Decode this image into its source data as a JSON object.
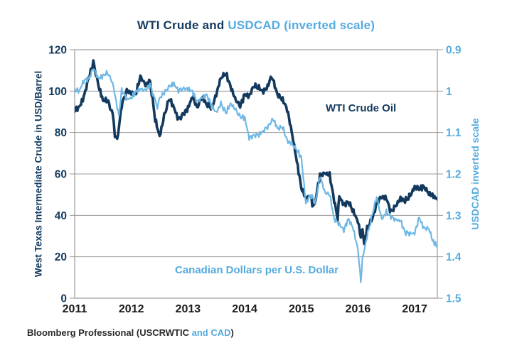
{
  "title": {
    "part1": "WTI Crude and ",
    "part2": "USDCAD (inverted scale)"
  },
  "footer": {
    "part1": "Bloomberg Professional (USCRWTIC ",
    "part2": "and CAD",
    "part3": ")"
  },
  "colors": {
    "navy": "#133a5e",
    "light_blue_text": "#54abdf",
    "light_blue_line": "#6fb8e5",
    "grid": "#999999",
    "x_tick_text": "#1b1b1b",
    "footer_text": "#2b2b2b",
    "background": "#ffffff"
  },
  "chart_data": {
    "type": "line",
    "title": "WTI Crude and USDCAD (inverted scale)",
    "grid": true,
    "x_axis": {
      "range": [
        2011.0,
        2017.4
      ],
      "tick_labels": [
        "2011",
        "2012",
        "2013",
        "2014",
        "2015",
        "2016",
        "2017"
      ],
      "tick_values": [
        2011,
        2012,
        2013,
        2014,
        2015,
        2016,
        2017
      ]
    },
    "left_axis": {
      "label": "West Texas Intermediate Crude in USD/Barrel",
      "range": [
        0,
        120
      ],
      "tick_labels": [
        "120",
        "100",
        "80",
        "60",
        "40",
        "20",
        "0"
      ],
      "tick_values": [
        120,
        100,
        80,
        60,
        40,
        20,
        0
      ]
    },
    "right_axis": {
      "label": "USDCAD inverted scale",
      "range": [
        0.9,
        1.5
      ],
      "inverted": true,
      "tick_labels": [
        "0.9",
        "1",
        "1.1",
        "1.2",
        "1.3",
        "1.4",
        "1.5"
      ],
      "tick_values": [
        0.9,
        1.0,
        1.1,
        1.2,
        1.3,
        1.4,
        1.5
      ]
    },
    "series": [
      {
        "name": "WTI Crude Oil",
        "axis": "left",
        "color": "#133a5e",
        "stroke_width": 3.6,
        "noise_amp": 1.6,
        "points": [
          [
            2011.0,
            91.0
          ],
          [
            2011.08,
            92.2
          ],
          [
            2011.16,
            97.0
          ],
          [
            2011.25,
            106.7
          ],
          [
            2011.33,
            113.9
          ],
          [
            2011.42,
            102.7
          ],
          [
            2011.5,
            95.4
          ],
          [
            2011.58,
            95.7
          ],
          [
            2011.67,
            88.8
          ],
          [
            2011.71,
            79.2
          ],
          [
            2011.75,
            76.0
          ],
          [
            2011.83,
            93.2
          ],
          [
            2011.92,
            100.4
          ],
          [
            2012.0,
            98.8
          ],
          [
            2012.08,
            98.5
          ],
          [
            2012.16,
            107.1
          ],
          [
            2012.25,
            103.0
          ],
          [
            2012.33,
            104.9
          ],
          [
            2012.42,
            86.5
          ],
          [
            2012.5,
            78.0
          ],
          [
            2012.58,
            88.1
          ],
          [
            2012.67,
            96.5
          ],
          [
            2012.75,
            92.2
          ],
          [
            2012.83,
            86.2
          ],
          [
            2012.92,
            88.9
          ],
          [
            2013.0,
            91.8
          ],
          [
            2013.08,
            97.5
          ],
          [
            2013.16,
            92.1
          ],
          [
            2013.25,
            97.2
          ],
          [
            2013.33,
            93.5
          ],
          [
            2013.42,
            91.9
          ],
          [
            2013.5,
            98.5
          ],
          [
            2013.58,
            106.5
          ],
          [
            2013.67,
            108.5
          ],
          [
            2013.75,
            102.3
          ],
          [
            2013.83,
            96.4
          ],
          [
            2013.92,
            92.7
          ],
          [
            2014.0,
            98.4
          ],
          [
            2014.08,
            97.5
          ],
          [
            2014.16,
            102.6
          ],
          [
            2014.25,
            101.6
          ],
          [
            2014.33,
            99.7
          ],
          [
            2014.42,
            102.7
          ],
          [
            2014.46,
            107.0
          ],
          [
            2014.5,
            105.4
          ],
          [
            2014.58,
            98.2
          ],
          [
            2014.67,
            95.9
          ],
          [
            2014.75,
            91.2
          ],
          [
            2014.83,
            80.5
          ],
          [
            2014.92,
            66.2
          ],
          [
            2015.0,
            53.3
          ],
          [
            2015.08,
            48.2
          ],
          [
            2015.16,
            49.8
          ],
          [
            2015.21,
            43.9
          ],
          [
            2015.25,
            47.6
          ],
          [
            2015.33,
            59.6
          ],
          [
            2015.42,
            60.3
          ],
          [
            2015.5,
            59.5
          ],
          [
            2015.58,
            47.1
          ],
          [
            2015.64,
            38.5
          ],
          [
            2015.67,
            49.2
          ],
          [
            2015.75,
            45.1
          ],
          [
            2015.83,
            46.6
          ],
          [
            2015.92,
            41.7
          ],
          [
            2016.0,
            37.0
          ],
          [
            2016.05,
            29.5
          ],
          [
            2016.08,
            33.6
          ],
          [
            2016.11,
            26.5
          ],
          [
            2016.16,
            33.7
          ],
          [
            2016.25,
            38.3
          ],
          [
            2016.33,
            45.9
          ],
          [
            2016.42,
            49.1
          ],
          [
            2016.5,
            48.3
          ],
          [
            2016.58,
            41.6
          ],
          [
            2016.67,
            44.7
          ],
          [
            2016.75,
            48.2
          ],
          [
            2016.83,
            46.9
          ],
          [
            2016.92,
            49.4
          ],
          [
            2017.0,
            53.7
          ],
          [
            2017.08,
            52.8
          ],
          [
            2017.16,
            54.0
          ],
          [
            2017.25,
            50.6
          ],
          [
            2017.33,
            49.3
          ],
          [
            2017.4,
            47.7
          ]
        ]
      },
      {
        "name": "Canadian Dollars per U.S. Dollar",
        "axis": "right",
        "color": "#6fb8e5",
        "stroke_width": 2.2,
        "noise_amp": 0.008,
        "points": [
          [
            2011.0,
            0.997
          ],
          [
            2011.08,
            1.0
          ],
          [
            2011.16,
            0.975
          ],
          [
            2011.25,
            0.97
          ],
          [
            2011.33,
            0.945
          ],
          [
            2011.42,
            0.97
          ],
          [
            2011.5,
            0.963
          ],
          [
            2011.58,
            0.955
          ],
          [
            2011.67,
            0.98
          ],
          [
            2011.75,
            1.038
          ],
          [
            2011.78,
            1.06
          ],
          [
            2011.83,
            0.997
          ],
          [
            2011.92,
            1.02
          ],
          [
            2012.0,
            1.017
          ],
          [
            2012.08,
            1.001
          ],
          [
            2012.16,
            0.995
          ],
          [
            2012.25,
            0.998
          ],
          [
            2012.33,
            0.985
          ],
          [
            2012.42,
            1.023
          ],
          [
            2012.46,
            1.04
          ],
          [
            2012.5,
            1.017
          ],
          [
            2012.58,
            1.004
          ],
          [
            2012.67,
            0.989
          ],
          [
            2012.75,
            0.982
          ],
          [
            2012.83,
            0.999
          ],
          [
            2012.92,
            0.994
          ],
          [
            2013.0,
            0.995
          ],
          [
            2013.08,
            1.001
          ],
          [
            2013.16,
            1.026
          ],
          [
            2013.25,
            1.016
          ],
          [
            2013.33,
            1.009
          ],
          [
            2013.42,
            1.036
          ],
          [
            2013.5,
            1.052
          ],
          [
            2013.58,
            1.03
          ],
          [
            2013.67,
            1.053
          ],
          [
            2013.75,
            1.03
          ],
          [
            2013.83,
            1.043
          ],
          [
            2013.92,
            1.062
          ],
          [
            2014.0,
            1.064
          ],
          [
            2014.08,
            1.113
          ],
          [
            2014.16,
            1.107
          ],
          [
            2014.25,
            1.105
          ],
          [
            2014.33,
            1.096
          ],
          [
            2014.42,
            1.084
          ],
          [
            2014.5,
            1.067
          ],
          [
            2014.58,
            1.09
          ],
          [
            2014.67,
            1.087
          ],
          [
            2014.75,
            1.12
          ],
          [
            2014.83,
            1.127
          ],
          [
            2014.92,
            1.142
          ],
          [
            2015.0,
            1.16
          ],
          [
            2015.08,
            1.271
          ],
          [
            2015.16,
            1.25
          ],
          [
            2015.25,
            1.268
          ],
          [
            2015.33,
            1.205
          ],
          [
            2015.42,
            1.246
          ],
          [
            2015.5,
            1.249
          ],
          [
            2015.58,
            1.309
          ],
          [
            2015.67,
            1.321
          ],
          [
            2015.75,
            1.336
          ],
          [
            2015.83,
            1.308
          ],
          [
            2015.92,
            1.333
          ],
          [
            2016.0,
            1.384
          ],
          [
            2016.05,
            1.46
          ],
          [
            2016.08,
            1.403
          ],
          [
            2016.16,
            1.352
          ],
          [
            2016.25,
            1.299
          ],
          [
            2016.33,
            1.255
          ],
          [
            2016.42,
            1.31
          ],
          [
            2016.5,
            1.292
          ],
          [
            2016.58,
            1.303
          ],
          [
            2016.67,
            1.311
          ],
          [
            2016.75,
            1.313
          ],
          [
            2016.83,
            1.341
          ],
          [
            2016.92,
            1.344
          ],
          [
            2017.0,
            1.343
          ],
          [
            2017.08,
            1.305
          ],
          [
            2017.16,
            1.331
          ],
          [
            2017.25,
            1.332
          ],
          [
            2017.33,
            1.365
          ],
          [
            2017.4,
            1.372
          ]
        ]
      }
    ]
  }
}
